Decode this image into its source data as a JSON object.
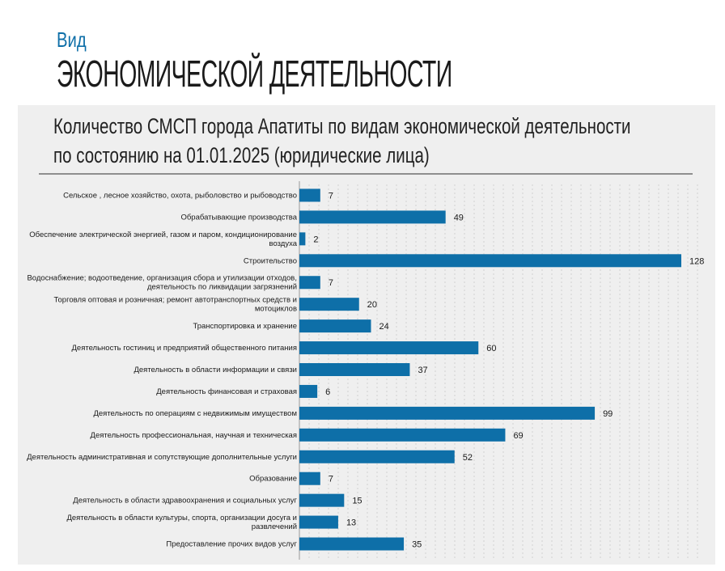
{
  "header": {
    "subtitle": "Вид",
    "title": "ЭКОНОМИЧЕСКОЙ ДЕЯТЕЛЬНОСТИ"
  },
  "chart_data": {
    "type": "bar",
    "orientation": "horizontal",
    "title_lines": [
      "Количество СМСП города Апатиты по видам экономической деятельности",
      "по состоянию на 01.01.2025 (юридические лица)"
    ],
    "bar_color": "#0e6fa8",
    "grid": true,
    "xlim": [
      0,
      128
    ],
    "categories": [
      [
        "Сельское , лесное хозяйство, охота, рыболовство и рыбоводство"
      ],
      [
        "Обрабатывающие  производства"
      ],
      [
        "Обеспечение электрической энергией, газом и паром, кондиционирование",
        "воздуха"
      ],
      [
        "Строительство"
      ],
      [
        "Водоснабжение; водоотведение, организация сбора и утилизации отходов,",
        "деятельность по ликвидации загрязнений"
      ],
      [
        "Торговля оптовая и розничная; ремонт автотранспортных средств и",
        "мотоциклов"
      ],
      [
        "Транспортировка и хранение"
      ],
      [
        "Деятельность гостиниц и предприятий общественного питания"
      ],
      [
        "Деятельность в области информации и связи"
      ],
      [
        "Деятельность финансовая и страховая"
      ],
      [
        "Деятельность по операциям с недвижимым имуществом"
      ],
      [
        "Деятельность профессиональная, научная и техническая"
      ],
      [
        "Деятельность административная и сопутствующие дополнительные услуги"
      ],
      [
        "Образование"
      ],
      [
        "Деятельность в области здравоохранения и социальных услуг"
      ],
      [
        "Деятельность в области культуры, спорта, организации досуга и",
        "развлечений"
      ],
      [
        "Предоставление прочих видов услуг"
      ]
    ],
    "values": [
      7,
      49,
      2,
      128,
      7,
      20,
      24,
      60,
      37,
      6,
      99,
      69,
      52,
      7,
      15,
      13,
      35
    ]
  }
}
